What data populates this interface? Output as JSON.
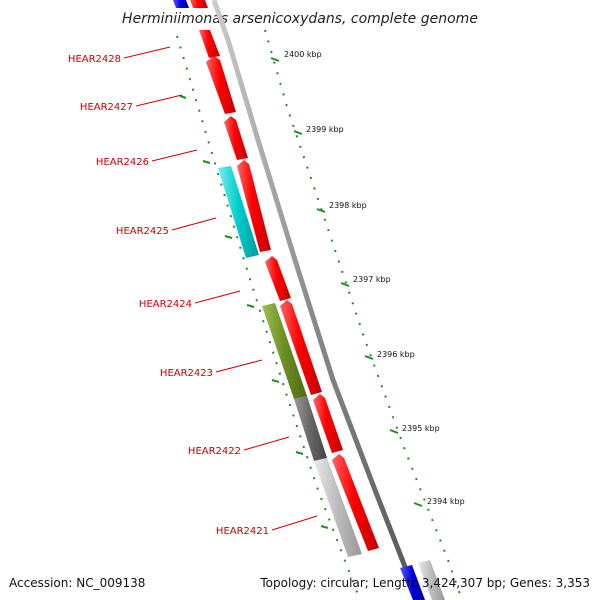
{
  "title": "Herminiimonas arsenicoxydans, complete genome",
  "ticks": [
    {
      "label": "2400 kbp"
    },
    {
      "label": "2399 kbp"
    },
    {
      "label": "2398 kbp"
    },
    {
      "label": "2397 kbp"
    },
    {
      "label": "2396 kbp"
    },
    {
      "label": "2395 kbp"
    },
    {
      "label": "2394 kbp"
    }
  ],
  "genes": [
    {
      "label": "HEAR2428"
    },
    {
      "label": "HEAR2427"
    },
    {
      "label": "HEAR2426"
    },
    {
      "label": "HEAR2425"
    },
    {
      "label": "HEAR2424"
    },
    {
      "label": "HEAR2423"
    },
    {
      "label": "HEAR2422"
    },
    {
      "label": "HEAR2421"
    }
  ],
  "footer": {
    "accession": "Accession: NC_009138",
    "summary": "Topology: circular; Length: 3,424,307 bp; Genes: 3,353"
  },
  "colors": {
    "cds": "#ff0000",
    "backbone": "#888888",
    "ticks": "#228b22",
    "label": "#cc0000",
    "cyan": "#00cccc",
    "olive": "#6b8e23",
    "dark_gray": "#666666",
    "light_gray": "#bbbbbb",
    "blue": "#0000dd"
  }
}
